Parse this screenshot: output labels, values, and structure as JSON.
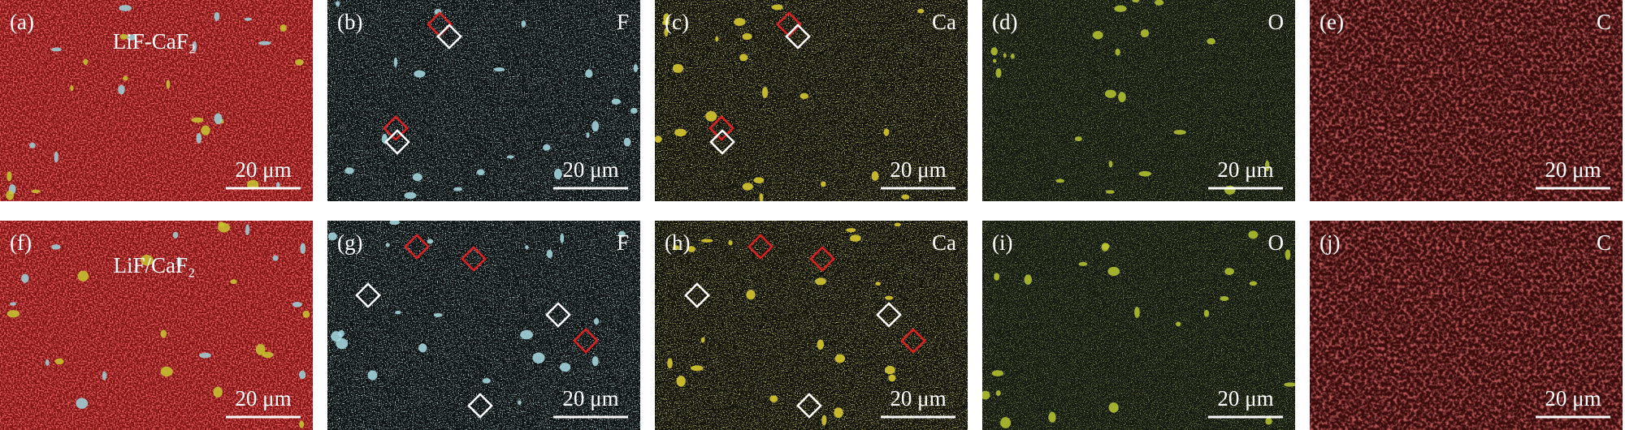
{
  "panels": [
    {
      "label": "(a)",
      "sample": "LiF-CaF₂",
      "scale_bar": "20 μm"
    },
    {
      "label": "(b)",
      "element": "F",
      "scale_bar": "20 μm"
    },
    {
      "label": "(c)",
      "element": "Ca",
      "scale_bar": "20 μm"
    },
    {
      "label": "(d)",
      "element": "O",
      "scale_bar": "20 μm"
    },
    {
      "label": "(e)",
      "element": "C",
      "scale_bar": "20 μm"
    },
    {
      "label": "(f)",
      "sample": "LiF/CaF₂",
      "scale_bar": "20 μm"
    },
    {
      "label": "(g)",
      "element": "F",
      "scale_bar": "20 μm"
    },
    {
      "label": "(h)",
      "element": "Ca",
      "scale_bar": "20 μm"
    },
    {
      "label": "(i)",
      "element": "O",
      "scale_bar": "20 μm"
    },
    {
      "label": "(j)",
      "element": "C",
      "scale_bar": "20 μm"
    }
  ]
}
